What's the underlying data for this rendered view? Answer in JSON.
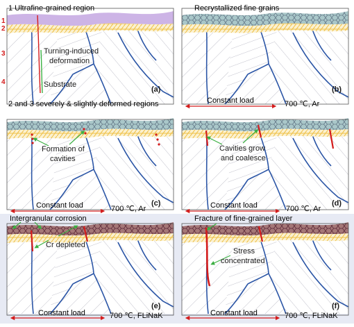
{
  "panels": {
    "a": {
      "letter": "(a)",
      "title": "1 Ultrafine-grained region",
      "layer_numbers": [
        "1",
        "2",
        "3",
        "4"
      ],
      "annotation_1": "Turning-induced",
      "annotation_2": "deformation",
      "annotation_3": "Substrate",
      "caption": "2 and 3 severely & slightly   deformed regions"
    },
    "b": {
      "letter": "(b)",
      "title": "Recrystallized fine grains",
      "load": "Constant load",
      "condition": "700 ℃, Ar"
    },
    "c": {
      "letter": "(c)",
      "annotation_1": "Formation of",
      "annotation_2": "cavities",
      "load": "Constant load",
      "condition": "700 ℃, Ar"
    },
    "d": {
      "letter": "(d)",
      "annotation_1": "Cavities grow",
      "annotation_2": "and coalesce",
      "load": "Constant load",
      "condition": "700 ℃, Ar"
    },
    "e": {
      "letter": "(e)",
      "title": "Intergranular corrosion",
      "annotation": "Cr depleted",
      "load": "Constant load",
      "condition": "700 ℃, FLiNaK"
    },
    "f": {
      "letter": "(f)",
      "title": "Fracture of fine-grained layer",
      "annotation_1": "Stress",
      "annotation_2": "concentrated",
      "load": "Constant load",
      "condition": "700 ℃, FLiNaK"
    }
  },
  "colors": {
    "surface_purple": "#cdb4e6",
    "fine_grain_fill": "#a9c7c9",
    "deformed_yellow": "#f0c44a",
    "grain_boundary": "#2c56a6",
    "hatch": "#bcbcc6",
    "crack_red": "#d41c1c",
    "arrow_green": "#3cb043",
    "panel_ef_bg": "#e7eaf4",
    "corroded_fill": "#a57777"
  }
}
